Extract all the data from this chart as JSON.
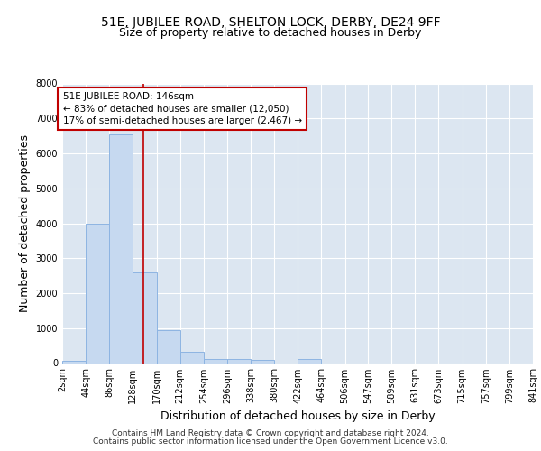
{
  "title_line1": "51E, JUBILEE ROAD, SHELTON LOCK, DERBY, DE24 9FF",
  "title_line2": "Size of property relative to detached houses in Derby",
  "xlabel": "Distribution of detached houses by size in Derby",
  "ylabel": "Number of detached properties",
  "footer_line1": "Contains HM Land Registry data © Crown copyright and database right 2024.",
  "footer_line2": "Contains public sector information licensed under the Open Government Licence v3.0.",
  "bin_edges": [
    2,
    44,
    86,
    128,
    170,
    212,
    254,
    296,
    338,
    380,
    422,
    464,
    506,
    547,
    589,
    631,
    673,
    715,
    757,
    799,
    841
  ],
  "bar_heights": [
    75,
    4000,
    6550,
    2600,
    950,
    310,
    125,
    105,
    80,
    0,
    105,
    0,
    0,
    0,
    0,
    0,
    0,
    0,
    0,
    0
  ],
  "bar_color": "#c6d9f0",
  "bar_edge_color": "#8db4e2",
  "property_size": 146,
  "vline_color": "#c00000",
  "annotation_line1": "51E JUBILEE ROAD: 146sqm",
  "annotation_line2": "← 83% of detached houses are smaller (12,050)",
  "annotation_line3": "17% of semi-detached houses are larger (2,467) →",
  "annotation_box_color": "white",
  "annotation_box_edge_color": "#c00000",
  "ylim": [
    0,
    8000
  ],
  "yticks": [
    0,
    1000,
    2000,
    3000,
    4000,
    5000,
    6000,
    7000,
    8000
  ],
  "xtick_labels": [
    "2sqm",
    "44sqm",
    "86sqm",
    "128sqm",
    "170sqm",
    "212sqm",
    "254sqm",
    "296sqm",
    "338sqm",
    "380sqm",
    "422sqm",
    "464sqm",
    "506sqm",
    "547sqm",
    "589sqm",
    "631sqm",
    "673sqm",
    "715sqm",
    "757sqm",
    "799sqm",
    "841sqm"
  ],
  "background_color": "#ffffff",
  "plot_bg_color": "#dce6f1",
  "grid_color": "#ffffff",
  "title_fontsize": 10,
  "subtitle_fontsize": 9,
  "axis_label_fontsize": 9,
  "tick_fontsize": 7,
  "footer_fontsize": 6.5
}
